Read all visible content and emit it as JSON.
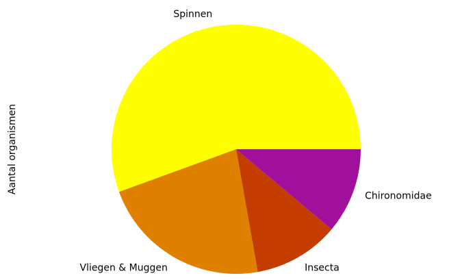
{
  "chart_data": {
    "type": "pie",
    "ylabel": "Aantal organismen",
    "categories": [
      "Spinnen",
      "Vliegen & Muggen",
      "Insecta",
      "Chironomidae"
    ],
    "values": [
      5,
      2,
      1,
      1
    ],
    "colors": [
      "#ffff00",
      "#e08000",
      "#c43c00",
      "#a0109a"
    ],
    "startangle": 0
  }
}
